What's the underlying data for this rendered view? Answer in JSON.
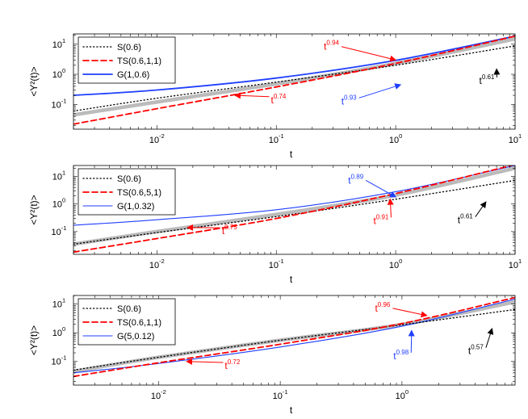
{
  "chart_data": [
    {
      "type": "line",
      "xlabel": "t",
      "ylabel": "<Y²(t)>",
      "xscale": "log",
      "yscale": "log",
      "xlim": [
        0.002,
        10
      ],
      "ylim": [
        0.015,
        22
      ],
      "x_ticks": [
        {
          "value": 0.01,
          "base": "10",
          "exp": "-2"
        },
        {
          "value": 0.1,
          "base": "10",
          "exp": "-1"
        },
        {
          "value": 1,
          "base": "10",
          "exp": "0"
        },
        {
          "value": 10,
          "base": "10",
          "exp": "1"
        }
      ],
      "y_ticks": [
        {
          "value": 0.1,
          "base": "10",
          "exp": "-1"
        },
        {
          "value": 1,
          "base": "10",
          "exp": "0"
        },
        {
          "value": 10,
          "base": "10",
          "exp": "1"
        }
      ],
      "legend_position": "top-left",
      "series": [
        {
          "name": "S(0.6)",
          "style": "dotted",
          "color": "#000000",
          "points": [
            [
              0.002,
              0.06
            ],
            [
              0.01,
              0.16
            ],
            [
              0.1,
              0.55
            ],
            [
              1,
              2.0
            ],
            [
              10,
              8.8
            ]
          ]
        },
        {
          "name": "TS(0.6,1,1)",
          "style": "dashed",
          "color": "#ff0000",
          "points": [
            [
              0.002,
              0.022
            ],
            [
              0.01,
              0.072
            ],
            [
              0.1,
              0.38
            ],
            [
              1,
              2.3
            ],
            [
              10,
              18.5
            ]
          ]
        },
        {
          "name": "G(1,0.6)",
          "style": "solid",
          "color": "#1f3fff",
          "points": [
            [
              0.002,
              0.2
            ],
            [
              0.01,
              0.3
            ],
            [
              0.1,
              0.75
            ],
            [
              1,
              2.9
            ],
            [
              10,
              18.5
            ]
          ]
        },
        {
          "name": "",
          "style": "reference",
          "color": "#bbbbbb",
          "points": [
            [
              0.002,
              0.045
            ],
            [
              0.01,
              0.12
            ],
            [
              0.1,
              0.48
            ],
            [
              1,
              2.3
            ],
            [
              10,
              15
            ]
          ]
        }
      ],
      "annotations": [
        {
          "base": "t",
          "exp": "0.94",
          "color": "#ff0000",
          "at": [
            0.25,
            6.5
          ],
          "arrow_to": [
            1.0,
            3.0
          ]
        },
        {
          "base": "t",
          "exp": "0.74",
          "color": "#ff0000",
          "at": [
            0.09,
            0.11
          ],
          "arrow_to": [
            0.045,
            0.2
          ]
        },
        {
          "base": "t",
          "exp": "0.93",
          "color": "#1f3fff",
          "at": [
            0.35,
            0.1
          ],
          "arrow_to": [
            1.1,
            0.45
          ]
        },
        {
          "base": "t",
          "exp": "0.61",
          "color": "#000000",
          "at": [
            5,
            0.48
          ],
          "arrow_to": [
            7,
            1.5
          ]
        }
      ]
    },
    {
      "type": "line",
      "xlabel": "t",
      "ylabel": "<Y²(t)>",
      "xscale": "log",
      "yscale": "log",
      "xlim": [
        0.002,
        10
      ],
      "ylim": [
        0.015,
        25
      ],
      "x_ticks": [
        {
          "value": 0.01,
          "base": "10",
          "exp": "-2"
        },
        {
          "value": 0.1,
          "base": "10",
          "exp": "-1"
        },
        {
          "value": 1,
          "base": "10",
          "exp": "0"
        },
        {
          "value": 10,
          "base": "10",
          "exp": "1"
        }
      ],
      "y_ticks": [
        {
          "value": 0.1,
          "base": "10",
          "exp": "-1"
        },
        {
          "value": 1,
          "base": "10",
          "exp": "0"
        },
        {
          "value": 10,
          "base": "10",
          "exp": "1"
        }
      ],
      "legend_position": "top-left",
      "series": [
        {
          "name": "S(0.6)",
          "style": "dotted",
          "color": "#000000",
          "points": [
            [
              0.002,
              0.035
            ],
            [
              0.01,
              0.092
            ],
            [
              0.1,
              0.35
            ],
            [
              1,
              1.5
            ],
            [
              10,
              7.2
            ]
          ]
        },
        {
          "name": "TS(0.6,5,1)",
          "style": "dashed",
          "color": "#ff0000",
          "points": [
            [
              0.002,
              0.018
            ],
            [
              0.01,
              0.056
            ],
            [
              0.1,
              0.3
            ],
            [
              1,
              2.4
            ],
            [
              10,
              27
            ]
          ]
        },
        {
          "name": "G(1,0.32)",
          "style": "solid-thin",
          "color": "#1f3fff",
          "points": [
            [
              0.002,
              0.17
            ],
            [
              0.01,
              0.27
            ],
            [
              0.1,
              0.62
            ],
            [
              1,
              2.8
            ],
            [
              10,
              25
            ]
          ]
        },
        {
          "name": "",
          "style": "reference",
          "color": "#bbbbbb",
          "points": [
            [
              0.002,
              0.035
            ],
            [
              0.01,
              0.1
            ],
            [
              0.1,
              0.42
            ],
            [
              1,
              2.1
            ],
            [
              10,
              20
            ]
          ]
        }
      ],
      "annotations": [
        {
          "base": "t",
          "exp": "0.89",
          "color": "#1f3fff",
          "at": [
            0.4,
            5.5
          ],
          "arrow_to": [
            1.0,
            1.8
          ]
        },
        {
          "base": "t",
          "exp": "0.75",
          "color": "#ff0000",
          "at": [
            0.035,
            0.08
          ],
          "arrow_to": [
            0.018,
            0.14
          ]
        },
        {
          "base": "t",
          "exp": "0.91",
          "color": "#ff0000",
          "at": [
            0.65,
            0.19
          ],
          "arrow_to": [
            0.9,
            1.5
          ]
        },
        {
          "base": "t",
          "exp": "0.61",
          "color": "#000000",
          "at": [
            3.3,
            0.2
          ],
          "arrow_to": [
            5.7,
            1.2
          ]
        }
      ]
    },
    {
      "type": "line",
      "xlabel": "t",
      "ylabel": "<Y²(t)>",
      "xscale": "log",
      "yscale": "log",
      "xlim": [
        0.002,
        8.5
      ],
      "ylim": [
        0.015,
        20
      ],
      "x_ticks": [
        {
          "value": 0.01,
          "base": "10",
          "exp": "-2"
        },
        {
          "value": 0.1,
          "base": "10",
          "exp": "-1"
        },
        {
          "value": 1,
          "base": "10",
          "exp": "0"
        }
      ],
      "y_ticks": [
        {
          "value": 0.1,
          "base": "10",
          "exp": "-1"
        },
        {
          "value": 1,
          "base": "10",
          "exp": "0"
        },
        {
          "value": 10,
          "base": "10",
          "exp": "1"
        }
      ],
      "legend_position": "top-left",
      "series": [
        {
          "name": "S(0.6)",
          "style": "dotted",
          "color": "#000000",
          "points": [
            [
              0.002,
              0.05
            ],
            [
              0.01,
              0.14
            ],
            [
              0.1,
              0.55
            ],
            [
              1,
              1.9
            ],
            [
              8.5,
              6.5
            ]
          ]
        },
        {
          "name": "TS(0.6,1,1)",
          "style": "dashed",
          "color": "#ff0000",
          "points": [
            [
              0.002,
              0.03
            ],
            [
              0.01,
              0.09
            ],
            [
              0.1,
              0.4
            ],
            [
              1,
              2.1
            ],
            [
              8.5,
              17
            ]
          ]
        },
        {
          "name": "G(5,0.12)",
          "style": "solid-thin",
          "color": "#1f3fff",
          "points": [
            [
              0.002,
              0.04
            ],
            [
              0.01,
              0.085
            ],
            [
              0.1,
              0.32
            ],
            [
              1,
              1.7
            ],
            [
              8.5,
              15
            ]
          ]
        },
        {
          "name": "",
          "style": "reference",
          "color": "#bbbbbb",
          "points": [
            [
              0.002,
              0.045
            ],
            [
              0.01,
              0.14
            ],
            [
              0.1,
              0.55
            ],
            [
              1,
              1.95
            ],
            [
              8.5,
              12
            ]
          ]
        }
      ],
      "annotations": [
        {
          "base": "t",
          "exp": "0.96",
          "color": "#ff0000",
          "at": [
            0.6,
            5.5
          ],
          "arrow_to": [
            1.6,
            4.0
          ]
        },
        {
          "base": "t",
          "exp": "0.72",
          "color": "#ff0000",
          "at": [
            0.035,
            0.055
          ],
          "arrow_to": [
            0.017,
            0.1
          ]
        },
        {
          "base": "t",
          "exp": "0.98",
          "color": "#1f3fff",
          "at": [
            0.85,
            0.12
          ],
          "arrow_to": [
            1.2,
            1.2
          ]
        },
        {
          "base": "t",
          "exp": "0.57",
          "color": "#000000",
          "at": [
            3.5,
            0.18
          ],
          "arrow_to": [
            5.5,
            1.4
          ]
        }
      ]
    }
  ]
}
